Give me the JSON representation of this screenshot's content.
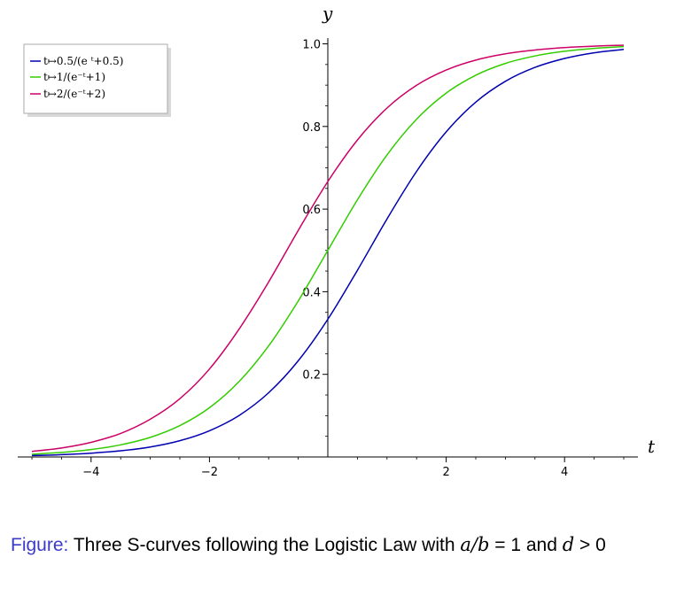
{
  "chart_data": {
    "type": "line",
    "xlabel": "t",
    "ylabel": "y",
    "xlim": [
      -5,
      5
    ],
    "ylim": [
      0,
      1.0
    ],
    "x_ticks": [
      -4,
      -2,
      2,
      4
    ],
    "x_tick_labels": [
      "−4",
      "−2",
      "2",
      "4"
    ],
    "y_ticks": [
      0.2,
      0.4,
      0.6,
      0.8,
      1.0
    ],
    "y_tick_labels": [
      "0.2",
      "0.4",
      "0.6",
      "0.8",
      "1.0"
    ],
    "legend_position": "top-left",
    "x": [
      -5,
      -4.5,
      -4,
      -3.5,
      -3,
      -2.5,
      -2,
      -1.5,
      -1,
      -0.5,
      0,
      0.5,
      1,
      1.5,
      2,
      2.5,
      3,
      3.5,
      4,
      4.5,
      5
    ],
    "series": [
      {
        "name": "t↦0.5/(e⁻ᵗ+0.5)",
        "color": "#0000b0",
        "values": [
          0.0034,
          0.0055,
          0.0091,
          0.0149,
          0.0243,
          0.0394,
          0.0634,
          0.1004,
          0.1554,
          0.2327,
          0.3333,
          0.4519,
          0.5761,
          0.6914,
          0.787,
          0.859,
          0.9094,
          0.943,
          0.9646,
          0.9783,
          0.9867
        ]
      },
      {
        "name": "t↦1/(e⁻ᵗ+1)",
        "color": "#33cc00",
        "values": [
          0.0067,
          0.011,
          0.018,
          0.0293,
          0.0474,
          0.0759,
          0.1192,
          0.1824,
          0.2689,
          0.3775,
          0.5,
          0.6225,
          0.7311,
          0.8176,
          0.8808,
          0.9241,
          0.9526,
          0.9707,
          0.982,
          0.989,
          0.9933
        ]
      },
      {
        "name": "t↦2/(e⁻ᵗ+2)",
        "color": "#cc0066",
        "values": [
          0.0133,
          0.0217,
          0.0354,
          0.057,
          0.0913,
          0.141,
          0.2128,
          0.3093,
          0.4236,
          0.5484,
          0.6667,
          0.7672,
          0.8446,
          0.8996,
          0.9366,
          0.9606,
          0.9757,
          0.9851,
          0.9909,
          0.9945,
          0.9966
        ]
      }
    ]
  },
  "legend_items": [
    {
      "label": "t↦0.5/(e ᵗ+0.5)"
    },
    {
      "label": "t↦1/(e⁻ᵗ+1)"
    },
    {
      "label": "t↦2/(e⁻ᵗ+2)"
    }
  ],
  "caption": {
    "label": "Figure:",
    "text_1": " Three S-curves following the Logistic Law with ",
    "math_1": "a/b",
    "text_2": " = 1 and ",
    "math_2": "d",
    "text_3": " > 0"
  }
}
